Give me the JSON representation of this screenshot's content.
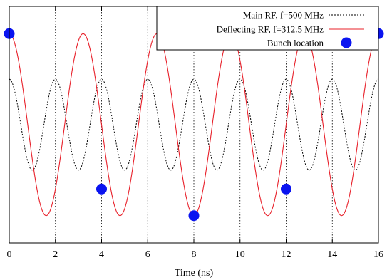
{
  "chart_data": {
    "type": "line",
    "title": "",
    "xlabel": "Time (ns)",
    "ylabel": "",
    "xlim": [
      0,
      16
    ],
    "ylim": [
      -1.3,
      1.3
    ],
    "xticks": [
      "0",
      "2",
      "4",
      "6",
      "8",
      "10",
      "12",
      "14",
      "16"
    ],
    "xtick_values": [
      0,
      2,
      4,
      6,
      8,
      10,
      12,
      14,
      16
    ],
    "grid": {
      "vertical": true,
      "horizontal": false,
      "style": "dotted"
    },
    "legend_position": "top-right",
    "series": [
      {
        "name": "Main RF, f=500 MHz",
        "kind": "function",
        "frequency_ghz": 0.5,
        "amplitude": 0.5,
        "phase": "cos",
        "color": "#000000",
        "style": "dotted",
        "x_range": [
          0,
          16
        ]
      },
      {
        "name": "Deflecting RF, f=312.5 MHz",
        "kind": "function",
        "frequency_ghz": 0.3125,
        "amplitude": 1.0,
        "phase": "cos",
        "color": "#e8202a",
        "style": "solid",
        "x_range": [
          0,
          16
        ]
      },
      {
        "name": "Bunch location",
        "kind": "points",
        "color": "#0a14f0",
        "x": [
          0,
          4,
          8,
          12,
          16
        ],
        "y": [
          1.0,
          -0.707,
          -1.0,
          -0.707,
          1.0
        ]
      }
    ]
  }
}
